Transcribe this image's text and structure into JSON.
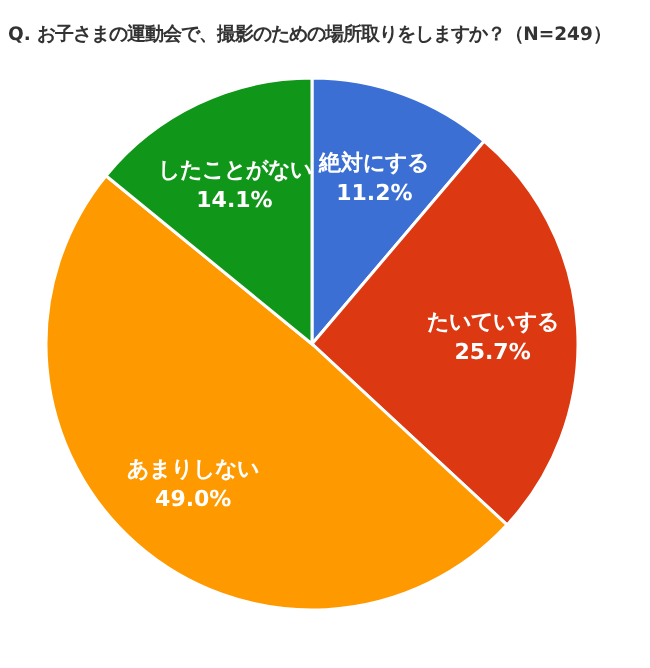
{
  "chart_data": {
    "type": "pie",
    "title": "Q. お子さまの運動会で、撮影のための場所取りをしますか？（N=249）",
    "categories": [
      "絶対にする",
      "たいていする",
      "あまりしない",
      "したことがない"
    ],
    "values": [
      11.2,
      25.7,
      49.0,
      14.1
    ],
    "value_labels": [
      "11.2%",
      "25.7%",
      "49.0%",
      "14.1%"
    ],
    "colors": [
      "#3b6fd4",
      "#dc3912",
      "#ff9900",
      "#109618"
    ]
  }
}
